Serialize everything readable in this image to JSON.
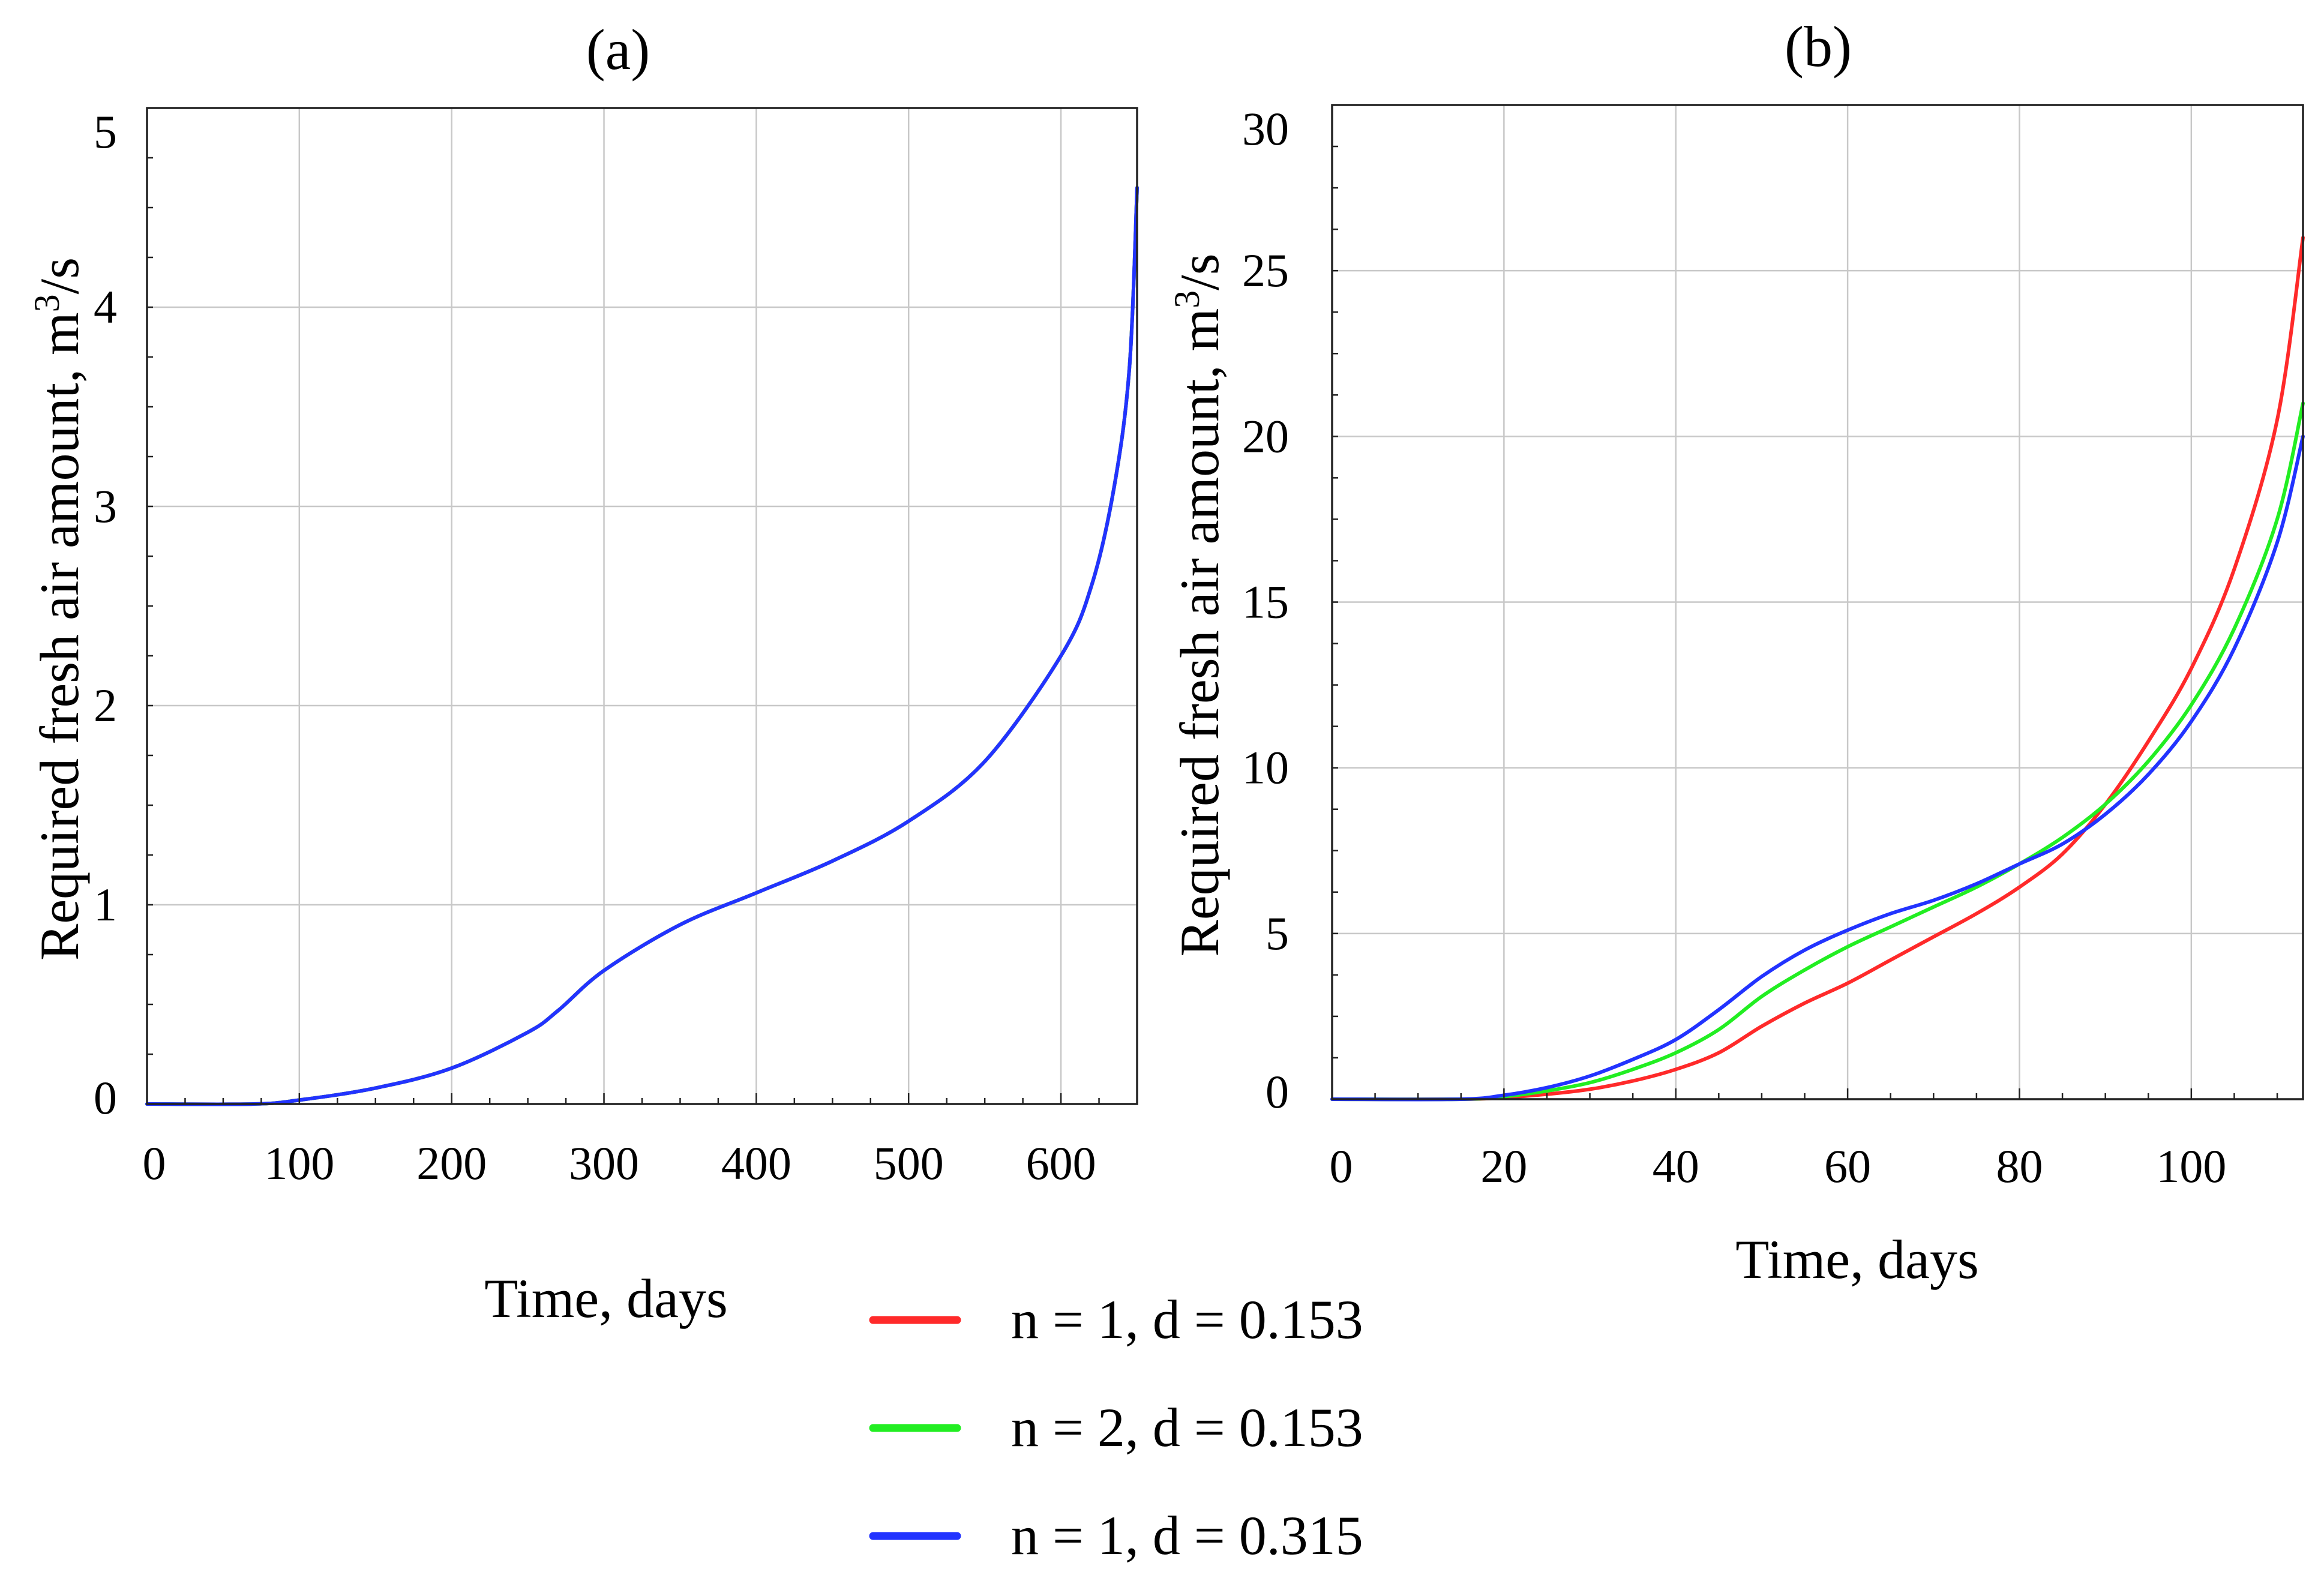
{
  "legend": [
    {
      "label": "n = 1, d = 0.153",
      "color": "#ff2a2a"
    },
    {
      "label": "n = 2, d = 0.153",
      "color": "#22ee22"
    },
    {
      "label": "n = 1, d = 0.315",
      "color": "#2233ff"
    }
  ],
  "chart_data": [
    {
      "type": "line",
      "title": "(a)",
      "xlabel": "Time, days",
      "ylabel": "Required fresh air amount, m",
      "ylabel_sup": "3",
      "ylabel_tail": "/s",
      "xlim": [
        0,
        650
      ],
      "ylim": [
        0,
        5
      ],
      "xticks": [
        0,
        100,
        200,
        300,
        400,
        500,
        600
      ],
      "yticks": [
        0,
        1,
        2,
        3,
        4,
        5
      ],
      "grid": true,
      "series": [
        {
          "name": "n = 1, d = 0.153",
          "color": "#ff2a2a",
          "x": [
            0,
            70,
            100,
            150,
            200,
            250,
            270,
            300,
            350,
            400,
            450,
            500,
            550,
            600,
            620,
            635,
            645,
            650
          ],
          "y": [
            0,
            0,
            0.02,
            0.08,
            0.18,
            0.36,
            0.47,
            0.67,
            0.9,
            1.06,
            1.22,
            1.42,
            1.72,
            2.25,
            2.6,
            3.1,
            3.7,
            4.6
          ]
        },
        {
          "name": "n = 2, d = 0.153",
          "color": "#22ee22",
          "x": [
            0,
            70,
            100,
            150,
            200,
            250,
            270,
            300,
            350,
            400,
            450,
            500,
            550,
            600,
            620,
            635,
            645,
            650
          ],
          "y": [
            0,
            0,
            0.02,
            0.08,
            0.18,
            0.36,
            0.47,
            0.67,
            0.9,
            1.06,
            1.22,
            1.42,
            1.72,
            2.25,
            2.6,
            3.1,
            3.7,
            4.6
          ]
        },
        {
          "name": "n = 1, d = 0.315",
          "color": "#2233ff",
          "x": [
            0,
            70,
            100,
            150,
            200,
            250,
            270,
            300,
            350,
            400,
            450,
            500,
            550,
            600,
            620,
            635,
            645,
            650
          ],
          "y": [
            0,
            0,
            0.02,
            0.08,
            0.18,
            0.36,
            0.47,
            0.67,
            0.9,
            1.06,
            1.22,
            1.42,
            1.72,
            2.25,
            2.6,
            3.1,
            3.7,
            4.6
          ]
        }
      ]
    },
    {
      "type": "line",
      "title": "(b)",
      "xlabel": "Time, days",
      "ylabel": "Required fresh air amount, m",
      "ylabel_sup": "3",
      "ylabel_tail": "/s",
      "xlim": [
        0,
        113
      ],
      "ylim": [
        0,
        30
      ],
      "xticks": [
        0,
        20,
        40,
        60,
        80,
        100
      ],
      "yticks": [
        0,
        5,
        10,
        15,
        20,
        25,
        30
      ],
      "grid": true,
      "series": [
        {
          "name": "n = 1, d = 0.153",
          "color": "#ff2a2a",
          "x": [
            0,
            15,
            20,
            25,
            30,
            35,
            40,
            45,
            50,
            55,
            60,
            65,
            70,
            75,
            80,
            85,
            90,
            95,
            100,
            105,
            110,
            113
          ],
          "y": [
            0,
            0,
            0.05,
            0.15,
            0.3,
            0.55,
            0.9,
            1.4,
            2.2,
            2.9,
            3.5,
            4.2,
            4.9,
            5.6,
            6.4,
            7.4,
            8.9,
            10.8,
            13.0,
            16.0,
            20.5,
            26.0
          ]
        },
        {
          "name": "n = 2, d = 0.153",
          "color": "#22ee22",
          "x": [
            0,
            15,
            20,
            25,
            30,
            35,
            40,
            45,
            50,
            55,
            60,
            65,
            70,
            75,
            80,
            85,
            90,
            95,
            100,
            105,
            110,
            113
          ],
          "y": [
            0,
            0,
            0.08,
            0.25,
            0.5,
            0.9,
            1.4,
            2.1,
            3.1,
            3.9,
            4.6,
            5.2,
            5.8,
            6.4,
            7.1,
            7.9,
            8.9,
            10.2,
            11.9,
            14.2,
            17.5,
            21.0
          ]
        },
        {
          "name": "n = 1, d = 0.315",
          "color": "#2233ff",
          "x": [
            0,
            15,
            20,
            25,
            30,
            35,
            40,
            45,
            50,
            55,
            60,
            65,
            70,
            75,
            80,
            85,
            90,
            95,
            100,
            105,
            110,
            113
          ],
          "y": [
            0,
            0,
            0.12,
            0.35,
            0.7,
            1.2,
            1.8,
            2.7,
            3.7,
            4.5,
            5.1,
            5.6,
            6.0,
            6.5,
            7.1,
            7.7,
            8.6,
            9.8,
            11.4,
            13.6,
            16.8,
            20.0
          ]
        }
      ]
    }
  ]
}
